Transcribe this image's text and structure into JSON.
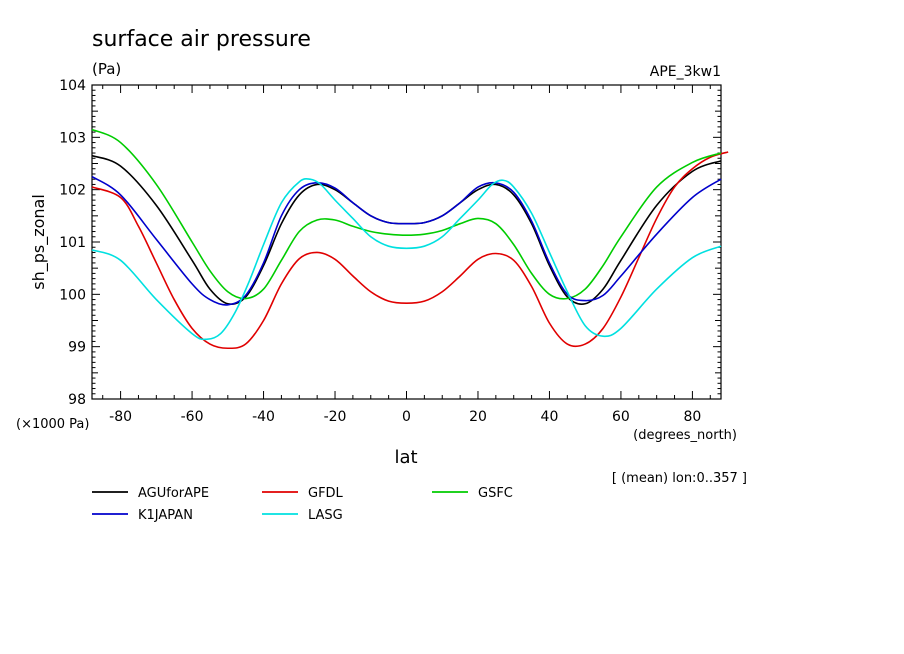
{
  "chart_data": {
    "type": "line",
    "title": "surface air pressure",
    "units_label": "(Pa)",
    "experiment": "APE_3kw1",
    "ylabel": "sh_ps_zonal",
    "xlabel": "lat",
    "x_units": "(degrees_north)",
    "y_scale_label": "(×1000 Pa)",
    "note": "[ (mean) lon:0..357 ]",
    "xlim": [
      -88,
      88
    ],
    "ylim": [
      98,
      104
    ],
    "x_ticks": [
      -80,
      -60,
      -40,
      -20,
      0,
      20,
      40,
      60,
      80
    ],
    "y_ticks": [
      98,
      99,
      100,
      101,
      102,
      103,
      104
    ],
    "x_ticklabels": [
      "-80",
      "-60",
      "-40",
      "-20",
      "0",
      "20",
      "40",
      "60",
      "80"
    ],
    "y_ticklabels": [
      "98",
      "99",
      "100",
      "101",
      "102",
      "103",
      "104"
    ],
    "series": [
      {
        "name": "AGUforAPE",
        "color": "#000000",
        "points": [
          [
            -88,
            102.65
          ],
          [
            -80,
            102.45
          ],
          [
            -70,
            101.7
          ],
          [
            -60,
            100.65
          ],
          [
            -55,
            100.1
          ],
          [
            -50,
            99.82
          ],
          [
            -45,
            99.95
          ],
          [
            -40,
            100.55
          ],
          [
            -35,
            101.35
          ],
          [
            -30,
            101.9
          ],
          [
            -25,
            102.1
          ],
          [
            -20,
            102.0
          ],
          [
            -15,
            101.75
          ],
          [
            -10,
            101.5
          ],
          [
            -5,
            101.37
          ],
          [
            0,
            101.35
          ],
          [
            5,
            101.37
          ],
          [
            10,
            101.5
          ],
          [
            15,
            101.75
          ],
          [
            20,
            102.0
          ],
          [
            25,
            102.1
          ],
          [
            30,
            101.9
          ],
          [
            35,
            101.35
          ],
          [
            40,
            100.55
          ],
          [
            45,
            99.95
          ],
          [
            50,
            99.82
          ],
          [
            55,
            100.1
          ],
          [
            60,
            100.65
          ],
          [
            70,
            101.7
          ],
          [
            80,
            102.35
          ],
          [
            88,
            102.55
          ]
        ]
      },
      {
        "name": "GFDL",
        "color": "#e00000",
        "points": [
          [
            -88,
            102.05
          ],
          [
            -80,
            101.85
          ],
          [
            -75,
            101.3
          ],
          [
            -70,
            100.6
          ],
          [
            -65,
            99.9
          ],
          [
            -60,
            99.35
          ],
          [
            -55,
            99.05
          ],
          [
            -50,
            98.97
          ],
          [
            -45,
            99.05
          ],
          [
            -40,
            99.5
          ],
          [
            -35,
            100.2
          ],
          [
            -30,
            100.68
          ],
          [
            -25,
            100.8
          ],
          [
            -20,
            100.67
          ],
          [
            -15,
            100.35
          ],
          [
            -10,
            100.05
          ],
          [
            -5,
            99.87
          ],
          [
            0,
            99.83
          ],
          [
            5,
            99.87
          ],
          [
            10,
            100.05
          ],
          [
            15,
            100.35
          ],
          [
            20,
            100.67
          ],
          [
            25,
            100.78
          ],
          [
            30,
            100.65
          ],
          [
            35,
            100.15
          ],
          [
            40,
            99.45
          ],
          [
            45,
            99.05
          ],
          [
            50,
            99.05
          ],
          [
            55,
            99.35
          ],
          [
            60,
            99.95
          ],
          [
            65,
            100.7
          ],
          [
            70,
            101.45
          ],
          [
            75,
            102.05
          ],
          [
            80,
            102.4
          ],
          [
            85,
            102.62
          ],
          [
            90,
            102.72
          ]
        ]
      },
      {
        "name": "GSFC",
        "color": "#00cc00",
        "points": [
          [
            -88,
            103.15
          ],
          [
            -80,
            102.9
          ],
          [
            -70,
            102.1
          ],
          [
            -60,
            101.0
          ],
          [
            -55,
            100.45
          ],
          [
            -50,
            100.05
          ],
          [
            -45,
            99.92
          ],
          [
            -40,
            100.1
          ],
          [
            -35,
            100.65
          ],
          [
            -30,
            101.2
          ],
          [
            -25,
            101.42
          ],
          [
            -20,
            101.42
          ],
          [
            -15,
            101.3
          ],
          [
            -10,
            101.2
          ],
          [
            -5,
            101.15
          ],
          [
            0,
            101.13
          ],
          [
            5,
            101.15
          ],
          [
            10,
            101.22
          ],
          [
            15,
            101.35
          ],
          [
            20,
            101.45
          ],
          [
            25,
            101.35
          ],
          [
            30,
            100.95
          ],
          [
            35,
            100.4
          ],
          [
            40,
            100.0
          ],
          [
            45,
            99.92
          ],
          [
            50,
            100.1
          ],
          [
            55,
            100.55
          ],
          [
            60,
            101.1
          ],
          [
            70,
            102.05
          ],
          [
            80,
            102.52
          ],
          [
            88,
            102.7
          ]
        ]
      },
      {
        "name": "K1JAPAN",
        "color": "#0000cc",
        "points": [
          [
            -88,
            102.25
          ],
          [
            -80,
            101.9
          ],
          [
            -70,
            101.05
          ],
          [
            -60,
            100.2
          ],
          [
            -55,
            99.9
          ],
          [
            -50,
            99.8
          ],
          [
            -45,
            99.98
          ],
          [
            -40,
            100.6
          ],
          [
            -35,
            101.5
          ],
          [
            -30,
            102.0
          ],
          [
            -25,
            102.13
          ],
          [
            -20,
            102.03
          ],
          [
            -15,
            101.75
          ],
          [
            -10,
            101.5
          ],
          [
            -5,
            101.37
          ],
          [
            0,
            101.35
          ],
          [
            5,
            101.37
          ],
          [
            10,
            101.5
          ],
          [
            15,
            101.75
          ],
          [
            20,
            102.05
          ],
          [
            25,
            102.13
          ],
          [
            30,
            101.95
          ],
          [
            35,
            101.4
          ],
          [
            40,
            100.6
          ],
          [
            45,
            100.0
          ],
          [
            50,
            99.88
          ],
          [
            55,
            99.98
          ],
          [
            60,
            100.35
          ],
          [
            70,
            101.15
          ],
          [
            80,
            101.85
          ],
          [
            88,
            102.2
          ]
        ]
      },
      {
        "name": "LASG",
        "color": "#00e0e0",
        "points": [
          [
            -88,
            100.85
          ],
          [
            -80,
            100.65
          ],
          [
            -70,
            99.9
          ],
          [
            -60,
            99.25
          ],
          [
            -56,
            99.14
          ],
          [
            -52,
            99.25
          ],
          [
            -48,
            99.65
          ],
          [
            -44,
            100.25
          ],
          [
            -40,
            100.95
          ],
          [
            -35,
            101.75
          ],
          [
            -30,
            102.15
          ],
          [
            -27,
            102.2
          ],
          [
            -24,
            102.1
          ],
          [
            -20,
            101.8
          ],
          [
            -15,
            101.45
          ],
          [
            -10,
            101.1
          ],
          [
            -5,
            100.92
          ],
          [
            0,
            100.88
          ],
          [
            5,
            100.92
          ],
          [
            10,
            101.1
          ],
          [
            15,
            101.45
          ],
          [
            20,
            101.8
          ],
          [
            24,
            102.1
          ],
          [
            27,
            102.18
          ],
          [
            30,
            102.05
          ],
          [
            35,
            101.55
          ],
          [
            40,
            100.8
          ],
          [
            45,
            100.05
          ],
          [
            50,
            99.4
          ],
          [
            55,
            99.2
          ],
          [
            60,
            99.35
          ],
          [
            70,
            100.1
          ],
          [
            80,
            100.7
          ],
          [
            88,
            100.92
          ]
        ]
      }
    ]
  }
}
